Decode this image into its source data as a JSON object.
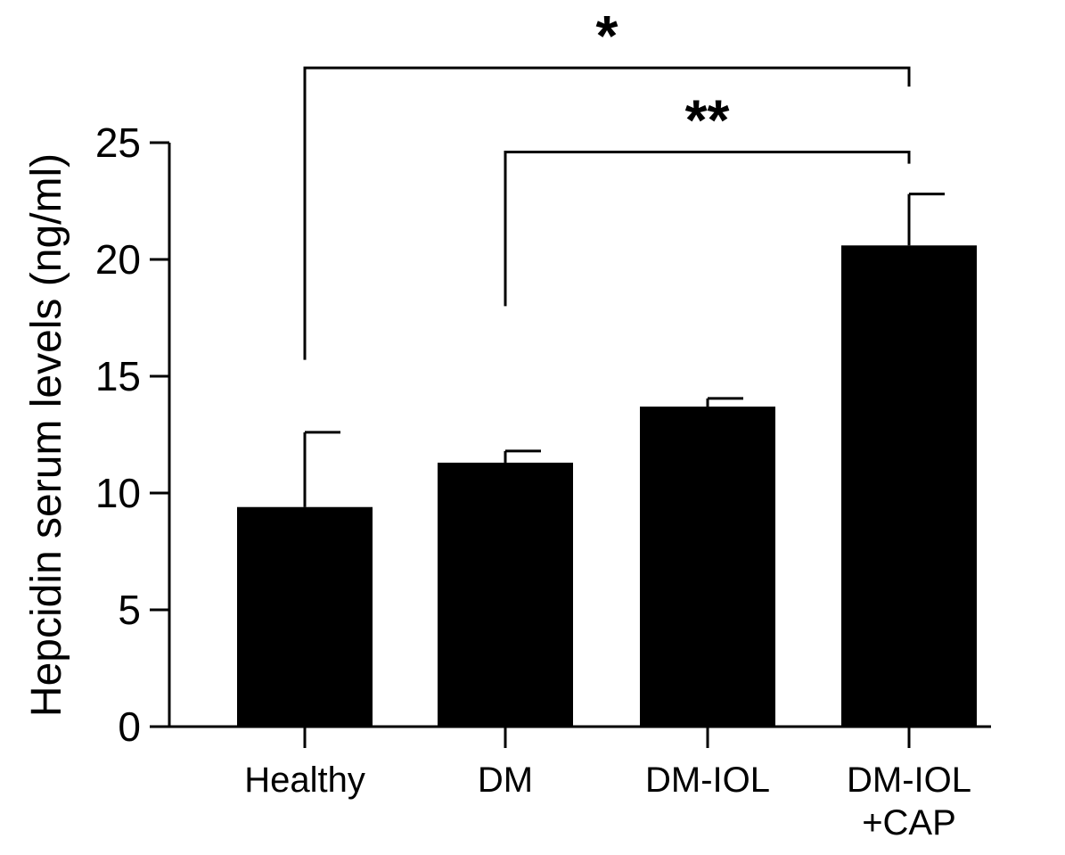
{
  "chart_data": {
    "type": "bar",
    "title": "",
    "xlabel": "",
    "ylabel": "Hepcidin serum levels  (ng/ml)",
    "ylim": [
      0,
      25
    ],
    "yticks": [
      0,
      5,
      10,
      15,
      20,
      25
    ],
    "categories": [
      {
        "lines": [
          "Healthy"
        ]
      },
      {
        "lines": [
          "DM"
        ]
      },
      {
        "lines": [
          "DM-IOL"
        ]
      },
      {
        "lines": [
          "DM-IOL",
          "+CAP"
        ]
      }
    ],
    "values": [
      9.4,
      11.3,
      13.7,
      20.6
    ],
    "errors": [
      3.2,
      0.5,
      0.35,
      2.2
    ],
    "bar_color": "#000000",
    "significance": [
      {
        "from": 0,
        "to": 3,
        "label": "*",
        "y": 28.2,
        "left_drop": 15.7,
        "right_drop": 27.4
      },
      {
        "from": 1,
        "to": 3,
        "label": "**",
        "y": 24.6,
        "left_drop": 18.0,
        "right_drop": 24.1
      }
    ]
  }
}
